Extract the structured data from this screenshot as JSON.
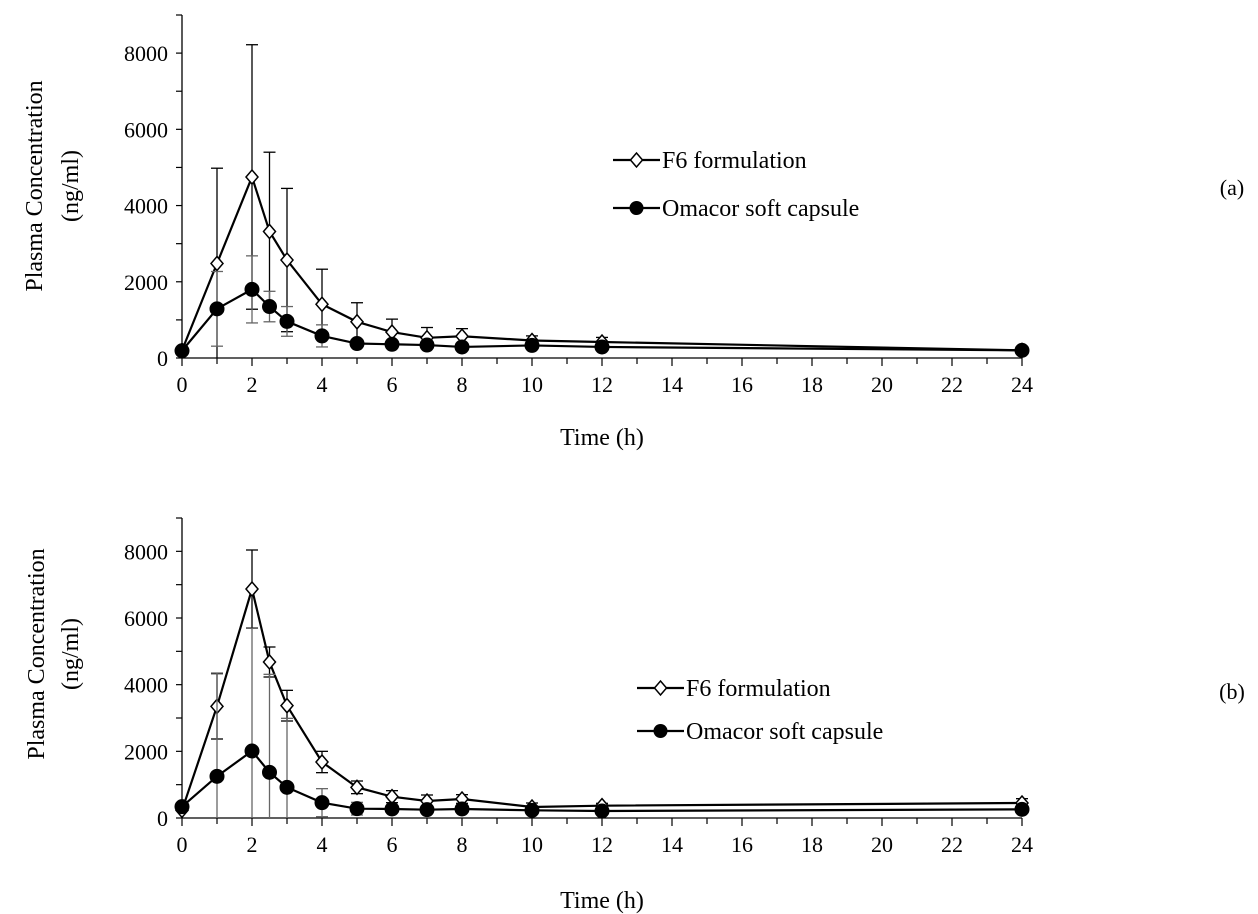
{
  "chart_data": [
    {
      "type": "line",
      "panel_label": "(a)",
      "xlabel": "Time (h)",
      "ylabel": "Plasma Concentration (ng/ml)",
      "ylabel_lines": [
        "Plasma Concentration",
        "(ng/ml)"
      ],
      "xlim": [
        0,
        24
      ],
      "ylim": [
        0,
        9000
      ],
      "xticks": [
        "0",
        "2",
        "4",
        "6",
        "8",
        "10",
        "12",
        "14",
        "16",
        "18",
        "20",
        "22",
        "24"
      ],
      "yticks": [
        "0",
        "2000",
        "4000",
        "6000",
        "8000"
      ],
      "grid": false,
      "legend_position": "upper-right",
      "series": [
        {
          "name": "F6 formulation",
          "marker": "open-diamond",
          "x": [
            0,
            1,
            2,
            2.5,
            3,
            4,
            5,
            6,
            7,
            8,
            10,
            12,
            24
          ],
          "y": [
            200,
            2480,
            4750,
            3320,
            2570,
            1410,
            950,
            680,
            530,
            570,
            460,
            420,
            200
          ],
          "err": [
            0,
            2500,
            3470,
            2080,
            1880,
            920,
            500,
            340,
            270,
            200,
            120,
            120,
            0
          ]
        },
        {
          "name": "Omacor soft capsule",
          "marker": "filled-circle",
          "x": [
            0,
            1,
            2,
            2.5,
            3,
            4,
            5,
            6,
            7,
            8,
            10,
            12,
            24
          ],
          "y": [
            190,
            1290,
            1800,
            1350,
            960,
            580,
            380,
            360,
            340,
            290,
            330,
            290,
            200
          ],
          "err": [
            0,
            980,
            880,
            400,
            390,
            290,
            100,
            80,
            70,
            60,
            80,
            60,
            0
          ]
        }
      ]
    },
    {
      "type": "line",
      "panel_label": "(b)",
      "xlabel": "Time (h)",
      "ylabel": "Plasma Concentration (ng/ml)",
      "ylabel_lines": [
        "Plasma Concentration",
        "(ng/ml)"
      ],
      "xlim": [
        0,
        24
      ],
      "ylim": [
        0,
        9000
      ],
      "xticks": [
        "0",
        "2",
        "4",
        "6",
        "8",
        "10",
        "12",
        "14",
        "16",
        "18",
        "20",
        "22",
        "24"
      ],
      "yticks": [
        "0",
        "2000",
        "4000",
        "6000",
        "8000"
      ],
      "grid": false,
      "legend_position": "right",
      "series": [
        {
          "name": "F6 formulation",
          "marker": "open-diamond",
          "x": [
            0,
            1,
            2,
            2.5,
            3,
            4,
            5,
            6,
            7,
            8,
            10,
            12,
            24
          ],
          "y": [
            230,
            3350,
            6870,
            4680,
            3370,
            1680,
            920,
            640,
            510,
            570,
            330,
            370,
            450
          ],
          "err": [
            0,
            980,
            1170,
            450,
            460,
            320,
            190,
            180,
            180,
            130,
            120,
            70,
            130
          ]
        },
        {
          "name": "Omacor soft capsule",
          "marker": "filled-circle",
          "x": [
            0,
            1,
            2,
            2.5,
            3,
            4,
            5,
            6,
            7,
            8,
            10,
            12,
            24
          ],
          "y": [
            340,
            1250,
            2010,
            1370,
            920,
            460,
            280,
            270,
            250,
            270,
            230,
            210,
            260
          ],
          "err": [
            0,
            3100,
            3680,
            2940,
            2070,
            420,
            190,
            100,
            100,
            80,
            70,
            60,
            60
          ]
        }
      ]
    }
  ]
}
